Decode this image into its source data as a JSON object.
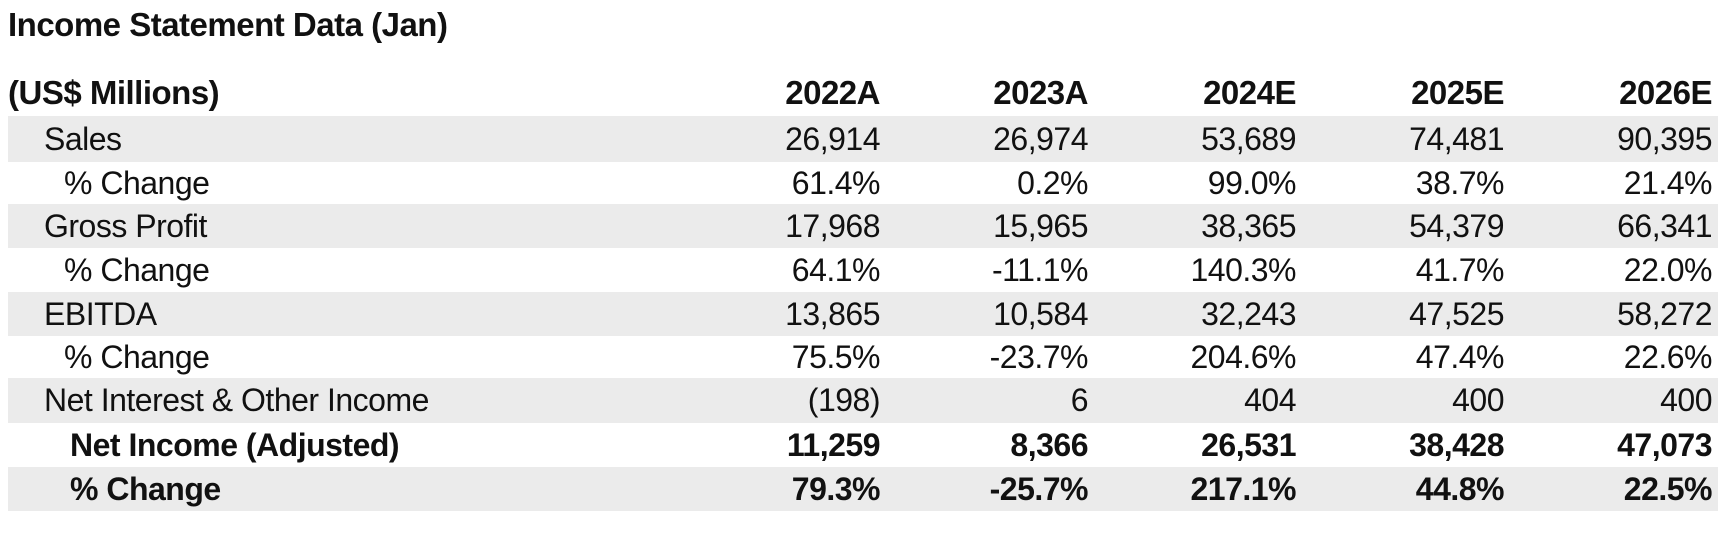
{
  "title": "Income Statement Data (Jan)",
  "header": {
    "label": "(US$ Millions)",
    "columns": [
      "2022A",
      "2023A",
      "2024E",
      "2025E",
      "2026E"
    ]
  },
  "rows": [
    {
      "label": "Sales",
      "values": [
        "26,914",
        "26,974",
        "53,689",
        "74,481",
        "90,395"
      ]
    },
    {
      "label": "% Change",
      "values": [
        "61.4%",
        "0.2%",
        "99.0%",
        "38.7%",
        "21.4%"
      ]
    },
    {
      "label": "Gross Profit",
      "values": [
        "17,968",
        "15,965",
        "38,365",
        "54,379",
        "66,341"
      ]
    },
    {
      "label": "% Change",
      "values": [
        "64.1%",
        "-11.1%",
        "140.3%",
        "41.7%",
        "22.0%"
      ]
    },
    {
      "label": "EBITDA",
      "values": [
        "13,865",
        "10,584",
        "32,243",
        "47,525",
        "58,272"
      ]
    },
    {
      "label": "% Change",
      "values": [
        "75.5%",
        "-23.7%",
        "204.6%",
        "47.4%",
        "22.6%"
      ]
    },
    {
      "label": "Net Interest & Other Income",
      "values": [
        "(198)",
        "6",
        "404",
        "400",
        "400"
      ]
    },
    {
      "label": "Net Income (Adjusted)",
      "values": [
        "11,259",
        "8,366",
        "26,531",
        "38,428",
        "47,073"
      ]
    },
    {
      "label": "% Change",
      "values": [
        "79.3%",
        "-25.7%",
        "217.1%",
        "44.8%",
        "22.5%"
      ]
    }
  ]
}
